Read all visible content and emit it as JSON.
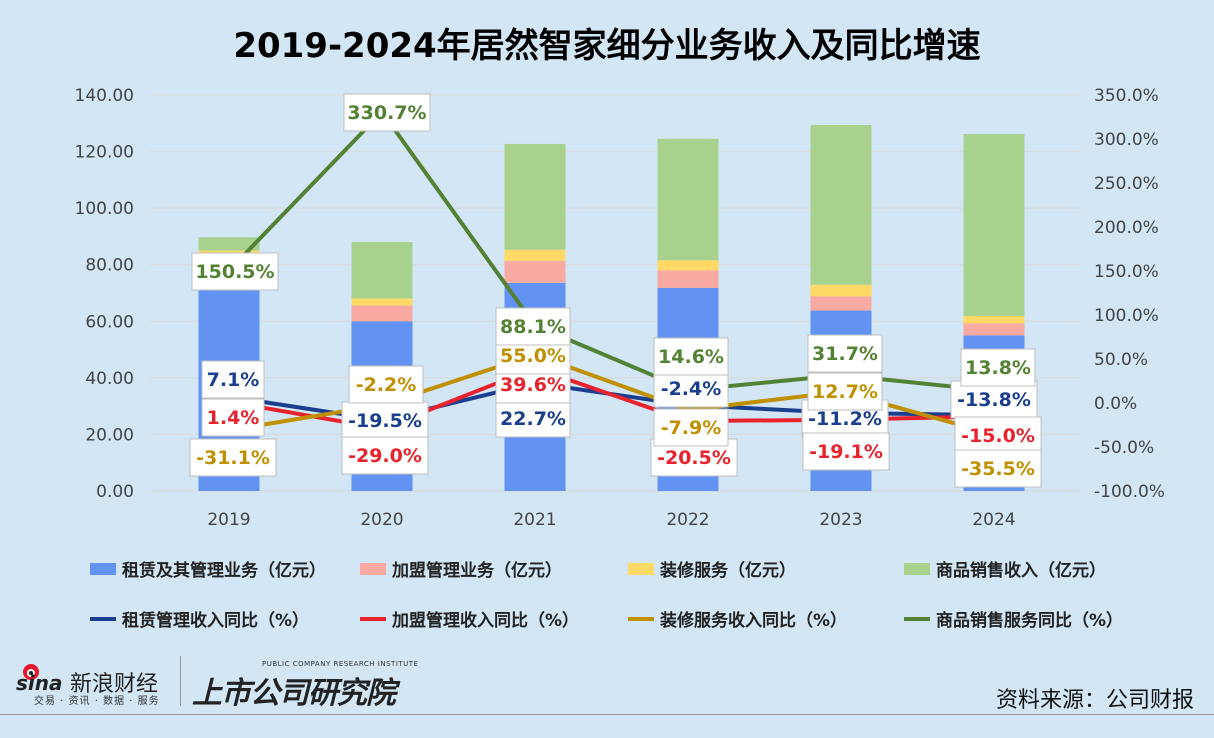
{
  "chart_data": {
    "type": "bar",
    "title": "2019-2024年居然智家细分业务收入及同比增速",
    "categories": [
      "2019",
      "2020",
      "2021",
      "2022",
      "2023",
      "2024"
    ],
    "y_left": {
      "range": [
        0,
        140
      ],
      "ticks": [
        "0.00",
        "20.00",
        "40.00",
        "60.00",
        "80.00",
        "100.00",
        "120.00",
        "140.00"
      ]
    },
    "y_right": {
      "range": [
        -100,
        350
      ],
      "ticks": [
        "-100.0%",
        "-50.0%",
        "0.0%",
        "50.0%",
        "100.0%",
        "150.0%",
        "200.0%",
        "250.0%",
        "300.0%",
        "350.0%"
      ]
    },
    "grid": true,
    "legend_placement": "bottom",
    "bar_series": [
      {
        "name": "租赁及其管理业务（亿元）",
        "color": "#6293f3",
        "values": [
          74.5,
          60.0,
          73.6,
          71.8,
          63.8,
          55.0
        ]
      },
      {
        "name": "加盟管理业务（亿元）",
        "color": "#f8aaa2",
        "values": [
          7.9,
          5.6,
          7.8,
          6.2,
          5.0,
          4.3
        ]
      },
      {
        "name": "装修服务（亿元）",
        "color": "#fed966",
        "values": [
          2.6,
          2.5,
          3.9,
          3.6,
          4.1,
          2.6
        ]
      },
      {
        "name": "商品销售收入（亿元）",
        "color": "#a9d18e",
        "values": [
          4.7,
          19.9,
          37.4,
          42.9,
          56.5,
          64.3
        ]
      }
    ],
    "line_series": [
      {
        "name": "租赁管理收入同比（%）",
        "color": "#1b3f8f",
        "values": [
          7.1,
          -19.5,
          22.7,
          -2.4,
          -11.2,
          -13.8
        ],
        "labels": [
          "7.1%",
          "-19.5%",
          "22.7%",
          "-2.4%",
          "-11.2%",
          "-13.8%"
        ]
      },
      {
        "name": "加盟管理收入同比（%）",
        "color": "#e8232d",
        "values": [
          1.4,
          -29.0,
          39.6,
          -20.5,
          -19.1,
          -15.0
        ],
        "labels": [
          "1.4%",
          "-29.0%",
          "39.6%",
          "-20.5%",
          "-19.1%",
          "-15.0%"
        ]
      },
      {
        "name": "装修服务收入同比（%）",
        "color": "#c09000",
        "values": [
          -31.1,
          -2.2,
          55.0,
          -7.9,
          12.7,
          -35.5
        ],
        "labels": [
          "-31.1%",
          "-2.2%",
          "55.0%",
          "-7.9%",
          "12.7%",
          "-35.5%"
        ]
      },
      {
        "name": "商品销售服务同比（%）",
        "color": "#548235",
        "values": [
          150.5,
          330.7,
          88.1,
          14.6,
          31.7,
          13.8
        ],
        "labels": [
          "150.5%",
          "330.7%",
          "88.1%",
          "14.6%",
          "31.7%",
          "13.8%"
        ]
      }
    ]
  },
  "footer": {
    "sina_logo": "sina",
    "sina_name": "新浪财经",
    "sina_sub": "交易 · 资讯 · 数据 · 服务",
    "institute_en": "PUBLIC COMPANY RESEARCH INSTITUTE",
    "institute_cn": "上市公司研究院",
    "source": "资料来源：公司财报"
  }
}
